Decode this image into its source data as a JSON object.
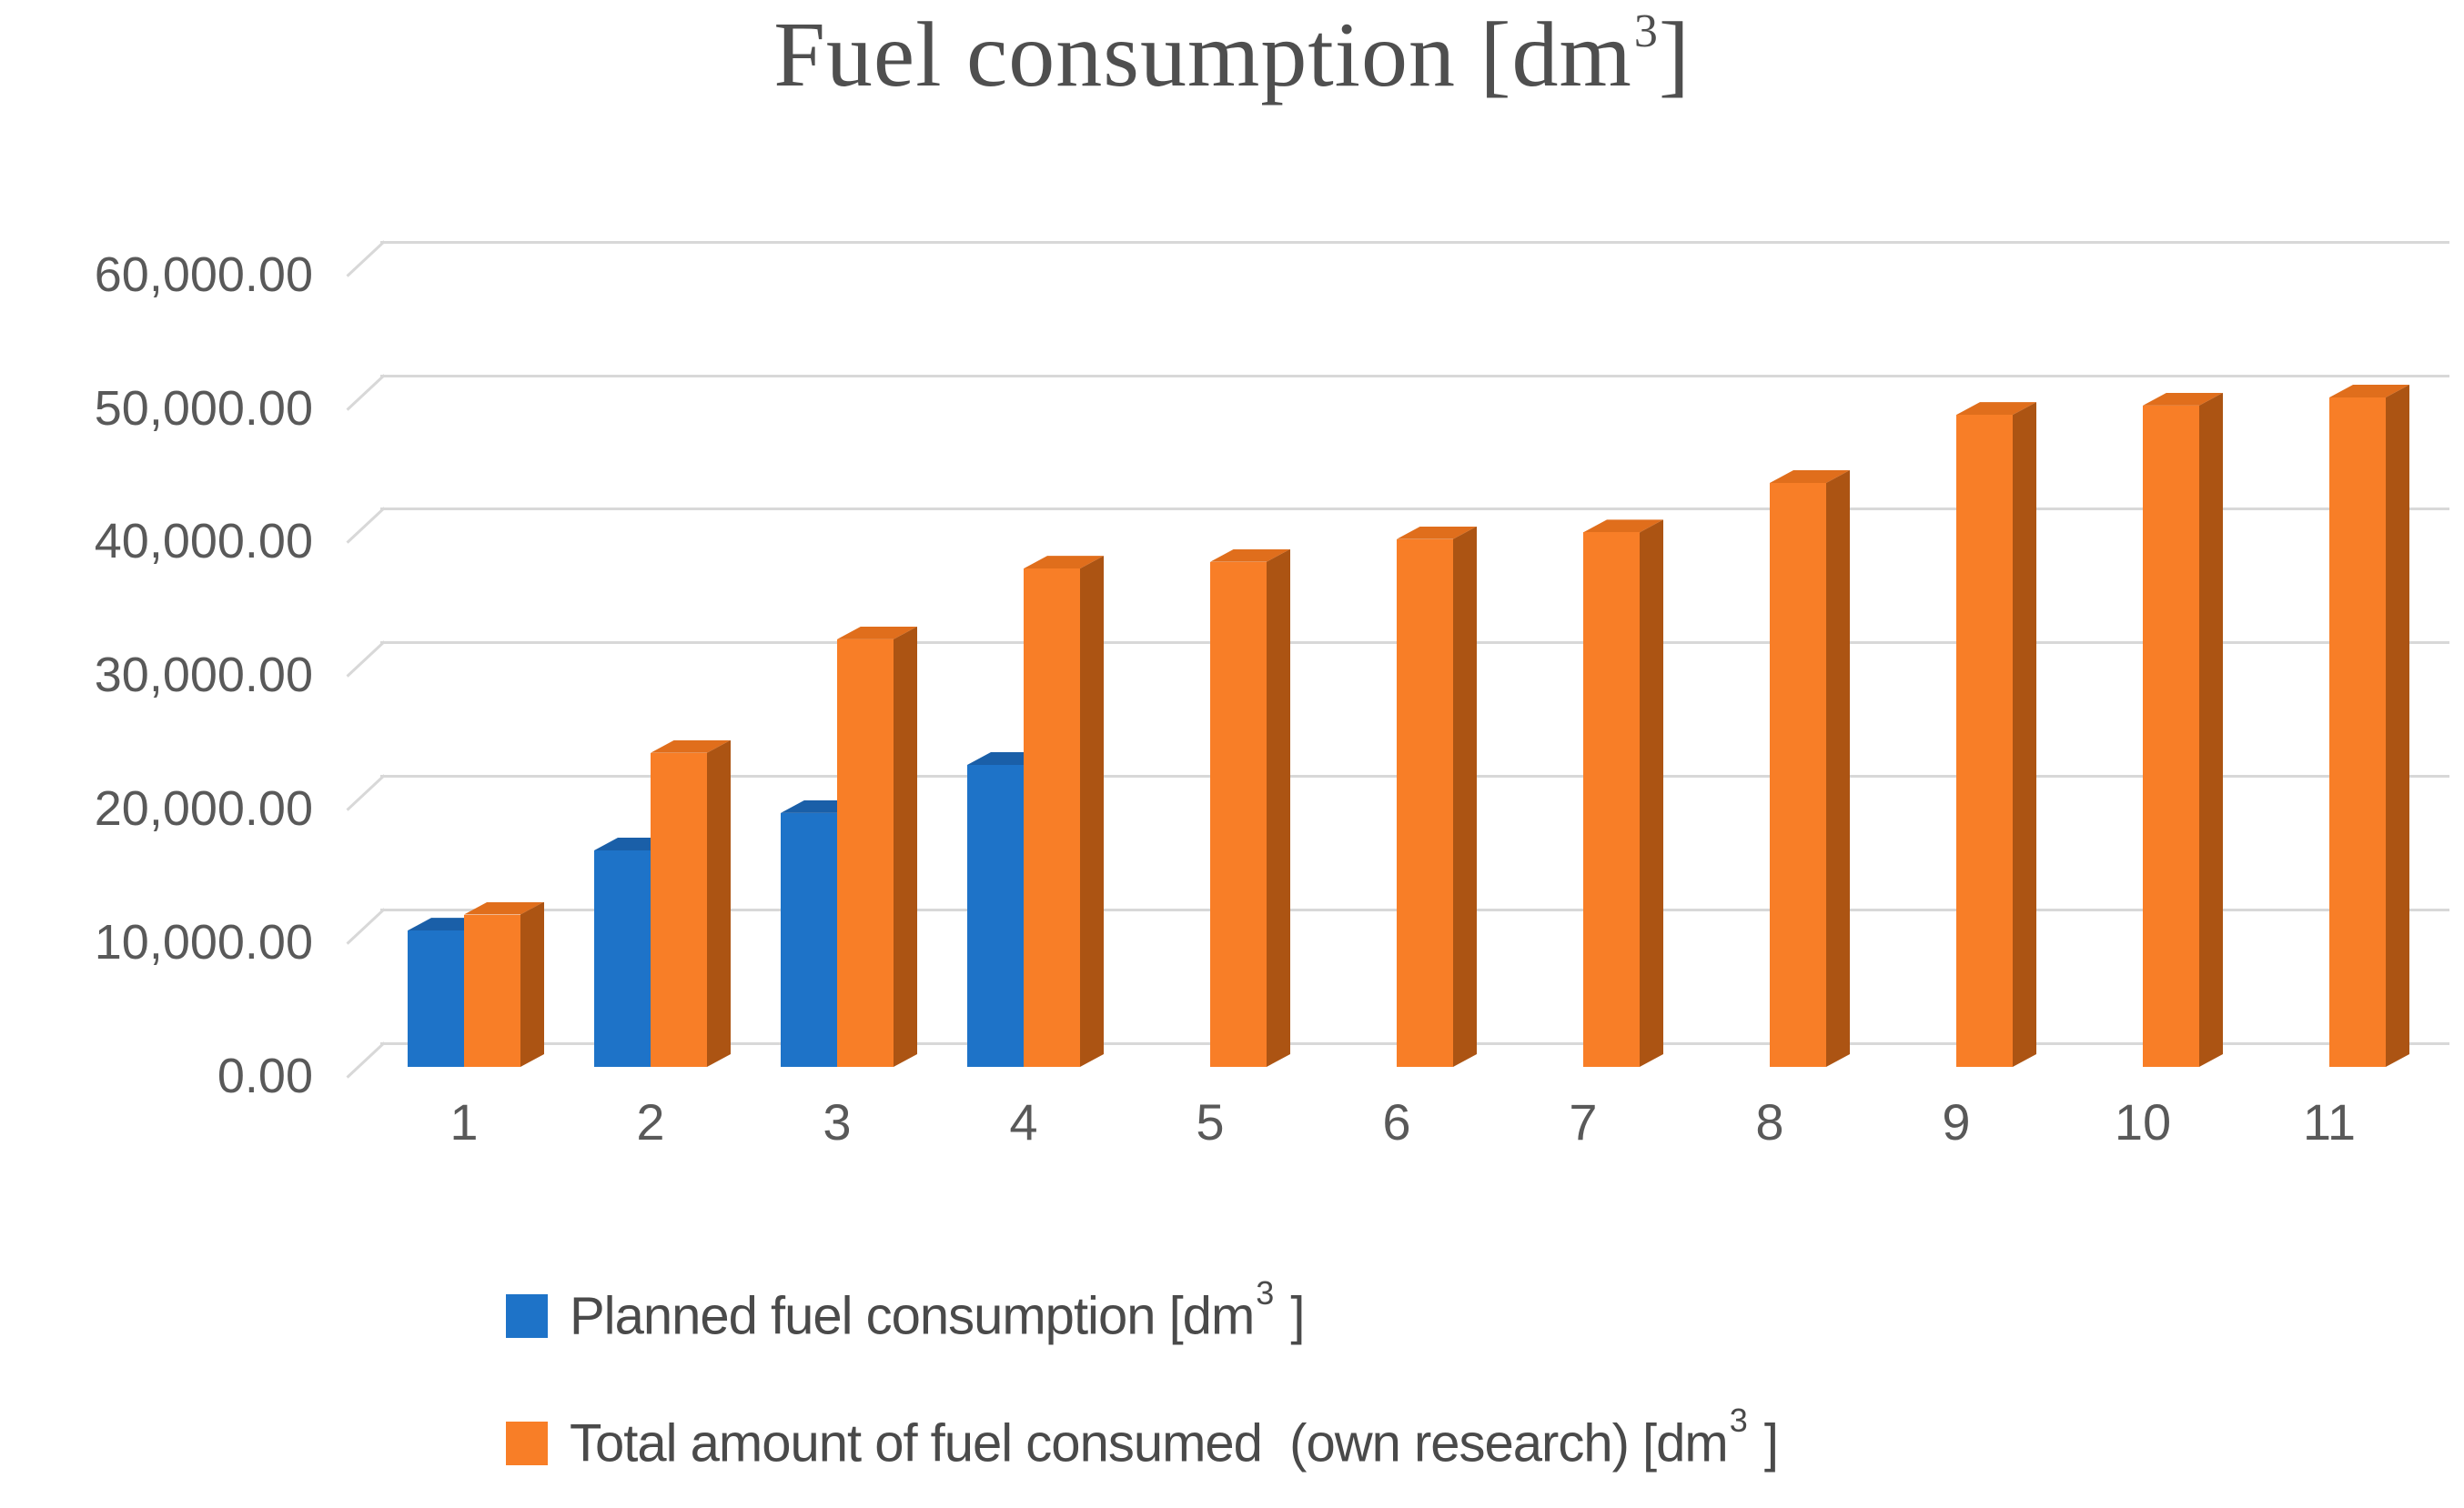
{
  "title": {
    "prefix": "Fuel consumption [dm",
    "sup": "3",
    "suffix": "]"
  },
  "legend": [
    {
      "series": "planned",
      "color": "#1E73C8",
      "prefix": "Planned fuel consumption [dm",
      "sup": "3",
      "suffix": " ]"
    },
    {
      "series": "total",
      "color": "#F87E27",
      "prefix": "Total amount of fuel consumed  (own research) [dm",
      "sup": "3",
      "suffix": " ]"
    }
  ],
  "colors": {
    "planned": {
      "front": "#1E73C8",
      "top": "#1A5FA8",
      "side": "#154F90"
    },
    "total": {
      "front": "#F87E27",
      "top": "#E06E1C",
      "side": "#AC5413"
    },
    "gridline": "#D8D8D8",
    "axis_text": "#595959",
    "title_text": "#4F4F4F"
  },
  "chart_data": {
    "type": "bar",
    "effect": "3d-clustered-column",
    "title": "Fuel consumption [dm3]",
    "xlabel": "",
    "ylabel": "",
    "ylim": [
      0,
      60000
    ],
    "ytick_step": 10000,
    "grid": true,
    "legend_position": "bottom-left",
    "categories": [
      "1",
      "2",
      "3",
      "4",
      "5",
      "6",
      "7",
      "8",
      "9",
      "10",
      "11"
    ],
    "y_ticks": [
      {
        "label": "0.00",
        "value": 0
      },
      {
        "label": "10,000.00",
        "value": 10000
      },
      {
        "label": "20,000.00",
        "value": 20000
      },
      {
        "label": "30,000.00",
        "value": 30000
      },
      {
        "label": "40,000.00",
        "value": 40000
      },
      {
        "label": "50,000.00",
        "value": 50000
      },
      {
        "label": "60,000.00",
        "value": 60000
      }
    ],
    "series": [
      {
        "name": "Planned fuel consumption [dm3]",
        "color": "#1E73C8",
        "values": [
          10200,
          16200,
          19000,
          22600,
          null,
          null,
          null,
          null,
          null,
          null,
          null
        ]
      },
      {
        "name": "Total amount of fuel consumed (own research) [dm3]",
        "color": "#F87E27",
        "values": [
          11400,
          23500,
          32000,
          37300,
          37800,
          39500,
          40000,
          43700,
          48800,
          49500,
          50100
        ]
      }
    ]
  }
}
